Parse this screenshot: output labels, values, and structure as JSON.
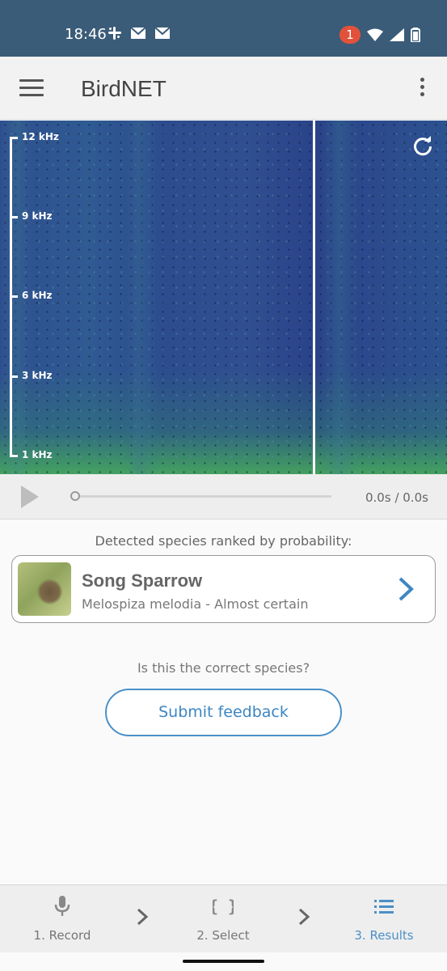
{
  "status_bar": {
    "time": "18:46",
    "notification_count": "1",
    "left_icons": [
      "slack-icon",
      "gmail-icon",
      "gmail-icon"
    ],
    "right_icons": [
      "wifi-icon",
      "signal-icon",
      "battery-icon"
    ]
  },
  "app_bar": {
    "title": "BirdNET"
  },
  "spectrogram": {
    "axis_labels": [
      "12 kHz",
      "9 kHz",
      "6 kHz",
      "3 kHz",
      "1 kHz"
    ]
  },
  "player": {
    "time_display": "0.0s / 0.0s",
    "progress": 0
  },
  "results": {
    "heading": "Detected species ranked by probability:",
    "species": [
      {
        "common_name": "Song Sparrow",
        "scientific_and_confidence": "Melospiza melodia - Almost certain"
      }
    ]
  },
  "feedback": {
    "question": "Is this the correct species?",
    "button_label": "Submit feedback"
  },
  "bottom_nav": {
    "items": [
      {
        "label": "1. Record",
        "icon": "microphone-icon",
        "active": false
      },
      {
        "label": "2. Select",
        "icon": "braces-icon",
        "active": false
      },
      {
        "label": "3. Results",
        "icon": "list-icon",
        "active": true
      }
    ]
  },
  "colors": {
    "status_bar": "#3b5c78",
    "accent": "#4a90c8",
    "badge": "#e2523a"
  }
}
